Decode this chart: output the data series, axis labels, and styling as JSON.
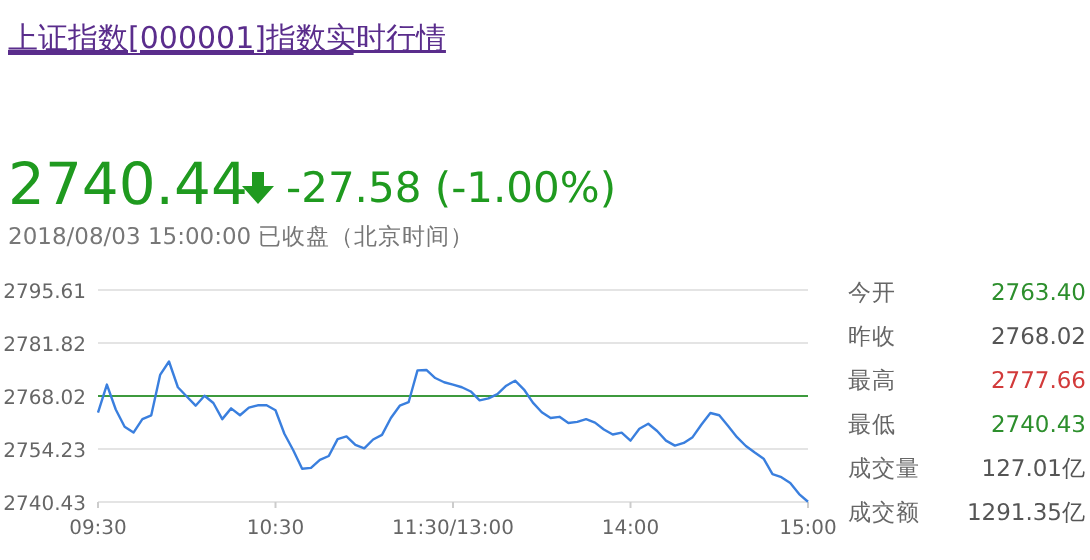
{
  "chart_data": {
    "type": "line",
    "title": "上证指数[000001]指数实时行情",
    "annotations": [
      "2740.44",
      "-27.58 (-1.00%)",
      "2018/08/03 15:00:00 已收盘（北京时间）",
      "今开",
      "2763.40",
      "昨收",
      "2768.02",
      "最高",
      "2777.66",
      "最低",
      "2740.43",
      "成交量",
      "127.01亿",
      "成交额",
      "1291.35亿"
    ],
    "categories": [
      "09:30",
      null,
      null,
      null,
      null,
      null,
      null,
      null,
      null,
      null,
      null,
      null,
      null,
      null,
      null,
      null,
      null,
      null,
      null,
      null,
      "10:30",
      null,
      null,
      null,
      null,
      null,
      null,
      null,
      null,
      null,
      null,
      null,
      null,
      null,
      null,
      null,
      null,
      null,
      null,
      null,
      "11:30/13:00",
      null,
      null,
      null,
      null,
      null,
      null,
      null,
      null,
      null,
      null,
      null,
      null,
      null,
      null,
      null,
      null,
      null,
      null,
      null,
      "14:00",
      null,
      null,
      null,
      null,
      null,
      null,
      null,
      null,
      null,
      null,
      null,
      null,
      null,
      null,
      null,
      null,
      null,
      null,
      null,
      "15:00"
    ],
    "series": [
      {
        "color": "#3a7fde",
        "values": [
          2763.7,
          2771,
          2764.5,
          2760,
          2758.5,
          2762,
          2763,
          2773.5,
          2777.0,
          2770.3,
          2767.9,
          2765.5,
          2768.1,
          2766.2,
          2762,
          2764.8,
          2763.0,
          2765,
          2765.6,
          2765.6,
          2764.3,
          2758.2,
          2753.9,
          2749.1,
          2749.3,
          2751.4,
          2752.4,
          2756.8,
          2757.5,
          2755.3,
          2754.4,
          2756.7,
          2757.9,
          2762.3,
          2765.5,
          2766.4,
          2774.7,
          2774.8,
          2772.7,
          2771.6,
          2771.0,
          2770.3,
          2769.2,
          2766.9,
          2767.4,
          2768.5,
          2770.7,
          2772.0,
          2769.7,
          2766.3,
          2763.8,
          2762.3,
          2762.6,
          2761.0,
          2761.3,
          2762.0,
          2761.1,
          2759.3,
          2758.0,
          2758.5,
          2756.4,
          2759.5,
          2760.8,
          2758.9,
          2756.4,
          2755.1,
          2755.8,
          2757.3,
          2760.6,
          2763.6,
          2763.0,
          2760.2,
          2757.3,
          2755.0,
          2753.3,
          2751.7,
          2747.7,
          2746.9,
          2745.4,
          2742.5,
          2740.5
        ]
      }
    ],
    "ylim": [
      2740.43,
      2795.61
    ],
    "yticks": [
      2740.43,
      2754.23,
      2768.02,
      2781.82,
      2795.61
    ],
    "ref_lines": [
      {
        "axis": "y",
        "value": 2768.02,
        "color": "#3d9a3d"
      }
    ],
    "grid": "y",
    "marker": "none",
    "line_style": "solid"
  }
}
